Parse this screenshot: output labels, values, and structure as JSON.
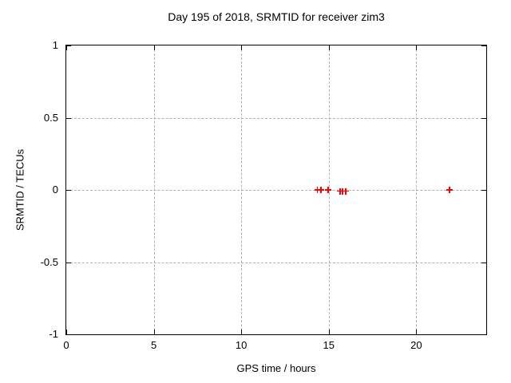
{
  "page": {
    "background": "#ffffff",
    "text_color": "#000000"
  },
  "chart_data": {
    "type": "scatter",
    "title": "Day 195 of 2018, SRMTID for receiver zim3",
    "xlabel": "GPS time / hours",
    "ylabel": "SRMTID / TECUs",
    "xlim": [
      0,
      24
    ],
    "ylim": [
      -1,
      1
    ],
    "xticks": [
      0,
      5,
      10,
      15,
      20
    ],
    "yticks": [
      1,
      0.5,
      0,
      -0.5,
      -1
    ],
    "grid": true,
    "legend_position": "none",
    "marker_style": "plus",
    "marker_color": "#ff0000",
    "grid_color": "#b0b0b0",
    "axis_color": "#000000",
    "series": [
      {
        "name": "SRMTID",
        "points": [
          {
            "x": 14.35,
            "y": 0.0
          },
          {
            "x": 14.55,
            "y": 0.0
          },
          {
            "x": 14.97,
            "y": 0.0
          },
          {
            "x": 15.66,
            "y": -0.01
          },
          {
            "x": 15.79,
            "y": -0.01
          },
          {
            "x": 15.98,
            "y": -0.01
          },
          {
            "x": 21.9,
            "y": 0.0
          }
        ]
      }
    ]
  }
}
